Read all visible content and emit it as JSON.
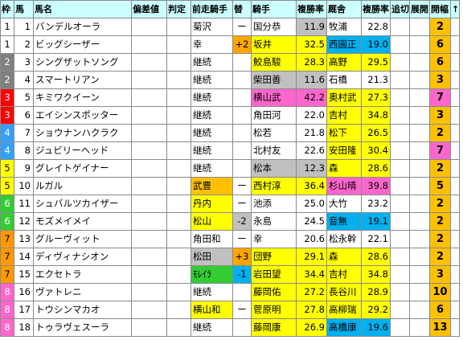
{
  "headers": [
    "枠",
    "馬",
    "馬名",
    "偏差値",
    "判定",
    "前走騎手",
    "替",
    "騎手",
    "複勝率",
    "厩舎",
    "複勝率",
    "追切",
    "展開",
    "開幅",
    "↑"
  ],
  "waku_colors": {
    "1": "#ffffff",
    "2": "#808080",
    "3": "#ff0000",
    "4": "#33a0ff",
    "5": "#ffff00",
    "6": "#33cc33",
    "7": "#ff9900",
    "8": "#ff66cc"
  },
  "rows": [
    {
      "waku": "1",
      "num": "1",
      "name": "バンデルオーラ",
      "prev": "菊沢",
      "prev_bg": "#ffffff",
      "chg": "ー",
      "chg_bg": "#ffffff",
      "jockey": "国分恭",
      "jockey_bg": "#ffffff",
      "jrate": "11.9",
      "jrate_bg": "#c0c0c0",
      "trainer": "牧浦",
      "trainer_bg": "#ffffff",
      "trate": "22.8",
      "trate_bg": "#ffffff",
      "kai": "2",
      "kai_bg": "#ffc000"
    },
    {
      "waku": "1",
      "num": "2",
      "name": "ビッグシーザー",
      "prev": "幸",
      "prev_bg": "#ffffff",
      "chg": "+2",
      "chg_bg": "#ffa500",
      "jockey": "坂井",
      "jockey_bg": "#ffff00",
      "jrate": "32.5",
      "jrate_bg": "#ffff00",
      "trainer": "西園正",
      "trainer_bg": "#00b0f0",
      "trate": "19.0",
      "trate_bg": "#00b0f0",
      "kai": "6",
      "kai_bg": "#ffc000"
    },
    {
      "waku": "2",
      "num": "3",
      "name": "シングザットソング",
      "prev": "継続",
      "prev_bg": "#ffffff",
      "chg": "",
      "chg_bg": "#ffffff",
      "jockey": "鮫島駿",
      "jockey_bg": "#ffff00",
      "jrate": "28.3",
      "jrate_bg": "#ffff00",
      "trainer": "高野",
      "trainer_bg": "#ffff00",
      "trate": "29.5",
      "trate_bg": "#ffff00",
      "kai": "6",
      "kai_bg": "#ffc000"
    },
    {
      "waku": "2",
      "num": "4",
      "name": "スマートリアン",
      "prev": "継続",
      "prev_bg": "#ffffff",
      "chg": "",
      "chg_bg": "#ffffff",
      "jockey": "柴田善",
      "jockey_bg": "#c0c0c0",
      "jrate": "11.6",
      "jrate_bg": "#c0c0c0",
      "trainer": "石橋",
      "trainer_bg": "#ffffff",
      "trate": "21.3",
      "trate_bg": "#ffffff",
      "kai": "3",
      "kai_bg": "#ffc000"
    },
    {
      "waku": "3",
      "num": "5",
      "name": "キミワクイーン",
      "prev": "継続",
      "prev_bg": "#ffffff",
      "chg": "",
      "chg_bg": "#ffffff",
      "jockey": "横山武",
      "jockey_bg": "#ff66cc",
      "jrate": "42.2",
      "jrate_bg": "#ff66cc",
      "trainer": "奥村武",
      "trainer_bg": "#ffff00",
      "trate": "27.3",
      "trate_bg": "#ffff00",
      "kai": "7",
      "kai_bg": "#ff66cc"
    },
    {
      "waku": "3",
      "num": "6",
      "name": "エイシンスポッター",
      "prev": "継続",
      "prev_bg": "#ffffff",
      "chg": "",
      "chg_bg": "#ffffff",
      "jockey": "角田河",
      "jockey_bg": "#ffffff",
      "jrate": "22.0",
      "jrate_bg": "#ffffff",
      "trainer": "吉村",
      "trainer_bg": "#ffff00",
      "trate": "34.8",
      "trate_bg": "#ffff00",
      "kai": "3",
      "kai_bg": "#ffc000"
    },
    {
      "waku": "4",
      "num": "7",
      "name": "ショウナンハクラク",
      "prev": "継続",
      "prev_bg": "#ffffff",
      "chg": "",
      "chg_bg": "#ffffff",
      "jockey": "松若",
      "jockey_bg": "#ffffff",
      "jrate": "21.8",
      "jrate_bg": "#ffffff",
      "trainer": "松下",
      "trainer_bg": "#ffff00",
      "trate": "26.5",
      "trate_bg": "#ffff00",
      "kai": "2",
      "kai_bg": "#ffc000"
    },
    {
      "waku": "4",
      "num": "8",
      "name": "ジュビリーヘッド",
      "prev": "継続",
      "prev_bg": "#ffffff",
      "chg": "",
      "chg_bg": "#ffffff",
      "jockey": "北村友",
      "jockey_bg": "#ffffff",
      "jrate": "22.6",
      "jrate_bg": "#ffffff",
      "trainer": "安田隆",
      "trainer_bg": "#ffff00",
      "trate": "30.4",
      "trate_bg": "#ffff00",
      "kai": "7",
      "kai_bg": "#ff66cc"
    },
    {
      "waku": "5",
      "num": "9",
      "name": "グレイトゲイナー",
      "prev": "継続",
      "prev_bg": "#ffffff",
      "chg": "",
      "chg_bg": "#ffffff",
      "jockey": "松本",
      "jockey_bg": "#c0c0c0",
      "jrate": "12.3",
      "jrate_bg": "#c0c0c0",
      "trainer": "森",
      "trainer_bg": "#ffff00",
      "trate": "28.6",
      "trate_bg": "#ffff00",
      "kai": "2",
      "kai_bg": "#ffc000"
    },
    {
      "waku": "5",
      "num": "10",
      "name": "ルガル",
      "prev": "武豊",
      "prev_bg": "#ffc000",
      "chg": "ー",
      "chg_bg": "#ffffff",
      "jockey": "西村淳",
      "jockey_bg": "#ffff00",
      "jrate": "36.4",
      "jrate_bg": "#ffff00",
      "trainer": "杉山晴",
      "trainer_bg": "#ff66cc",
      "trate": "39.8",
      "trate_bg": "#ff66cc",
      "kai": "5",
      "kai_bg": "#ffc000"
    },
    {
      "waku": "6",
      "num": "11",
      "name": "シュバルツカイザー",
      "prev": "丹内",
      "prev_bg": "#ffff00",
      "chg": "ー",
      "chg_bg": "#ffffff",
      "jockey": "池添",
      "jockey_bg": "#ffffff",
      "jrate": "25.0",
      "jrate_bg": "#ffffff",
      "trainer": "大竹",
      "trainer_bg": "#ffffff",
      "trate": "23.2",
      "trate_bg": "#ffffff",
      "kai": "2",
      "kai_bg": "#ffc000"
    },
    {
      "waku": "6",
      "num": "12",
      "name": "モズメイメイ",
      "prev": "松山",
      "prev_bg": "#ffff00",
      "chg": "-2",
      "chg_bg": "#c0c0c0",
      "jockey": "永島",
      "jockey_bg": "#ffffff",
      "jrate": "24.5",
      "jrate_bg": "#ffffff",
      "trainer": "音無",
      "trainer_bg": "#00b0f0",
      "trate": "19.1",
      "trate_bg": "#00b0f0",
      "kai": "2",
      "kai_bg": "#ffc000"
    },
    {
      "waku": "7",
      "num": "13",
      "name": "グルーヴィット",
      "prev": "角田和",
      "prev_bg": "#ffffff",
      "chg": "ー",
      "chg_bg": "#ffffff",
      "jockey": "幸",
      "jockey_bg": "#ffffff",
      "jrate": "20.6",
      "jrate_bg": "#ffffff",
      "trainer": "松永幹",
      "trainer_bg": "#ffffff",
      "trate": "22.1",
      "trate_bg": "#ffffff",
      "kai": "2",
      "kai_bg": "#ffc000"
    },
    {
      "waku": "7",
      "num": "14",
      "name": "ディヴィナシオン",
      "prev": "松田",
      "prev_bg": "#c0c0c0",
      "chg": "+3",
      "chg_bg": "#ffa500",
      "jockey": "団野",
      "jockey_bg": "#ffff00",
      "jrate": "29.1",
      "jrate_bg": "#ffff00",
      "trainer": "森",
      "trainer_bg": "#ffff00",
      "trate": "28.6",
      "trate_bg": "#ffff00",
      "kai": "2",
      "kai_bg": "#ffc000"
    },
    {
      "waku": "7",
      "num": "15",
      "name": "エクセトラ",
      "prev": "ﾓﾚｲﾗ",
      "prev_bg": "#33cc33",
      "chg": "-1",
      "chg_bg": "#00b0f0",
      "jockey": "岩田望",
      "jockey_bg": "#ffff00",
      "jrate": "34.4",
      "jrate_bg": "#ffff00",
      "trainer": "吉村",
      "trainer_bg": "#ffff00",
      "trate": "34.8",
      "trate_bg": "#ffff00",
      "kai": "3",
      "kai_bg": "#ffc000"
    },
    {
      "waku": "8",
      "num": "16",
      "name": "ヴァトレニ",
      "prev": "継続",
      "prev_bg": "#ffffff",
      "chg": "",
      "chg_bg": "#ffffff",
      "jockey": "藤岡佑",
      "jockey_bg": "#ffff00",
      "jrate": "27.2",
      "jrate_bg": "#ffff00",
      "trainer": "長谷川",
      "trainer_bg": "#ffff00",
      "trate": "28.9",
      "trate_bg": "#ffff00",
      "kai": "10",
      "kai_bg": "#ffc000"
    },
    {
      "waku": "8",
      "num": "17",
      "name": "トウシンマカオ",
      "prev": "横山和",
      "prev_bg": "#ffff00",
      "chg": "ー",
      "chg_bg": "#ffffff",
      "jockey": "菅原明",
      "jockey_bg": "#ffff00",
      "jrate": "27.8",
      "jrate_bg": "#ffff00",
      "trainer": "高柳瑞",
      "trainer_bg": "#ffff00",
      "trate": "29.2",
      "trate_bg": "#ffff00",
      "kai": "6",
      "kai_bg": "#ffc000"
    },
    {
      "waku": "8",
      "num": "18",
      "name": "トゥラヴェスーラ",
      "prev": "継続",
      "prev_bg": "#ffffff",
      "chg": "",
      "chg_bg": "#ffffff",
      "jockey": "藤岡康",
      "jockey_bg": "#ffff00",
      "jrate": "26.9",
      "jrate_bg": "#ffff00",
      "trainer": "高橋康",
      "trainer_bg": "#00b0f0",
      "trate": "19.6",
      "trate_bg": "#00b0f0",
      "kai": "13",
      "kai_bg": "#ffc000"
    }
  ]
}
